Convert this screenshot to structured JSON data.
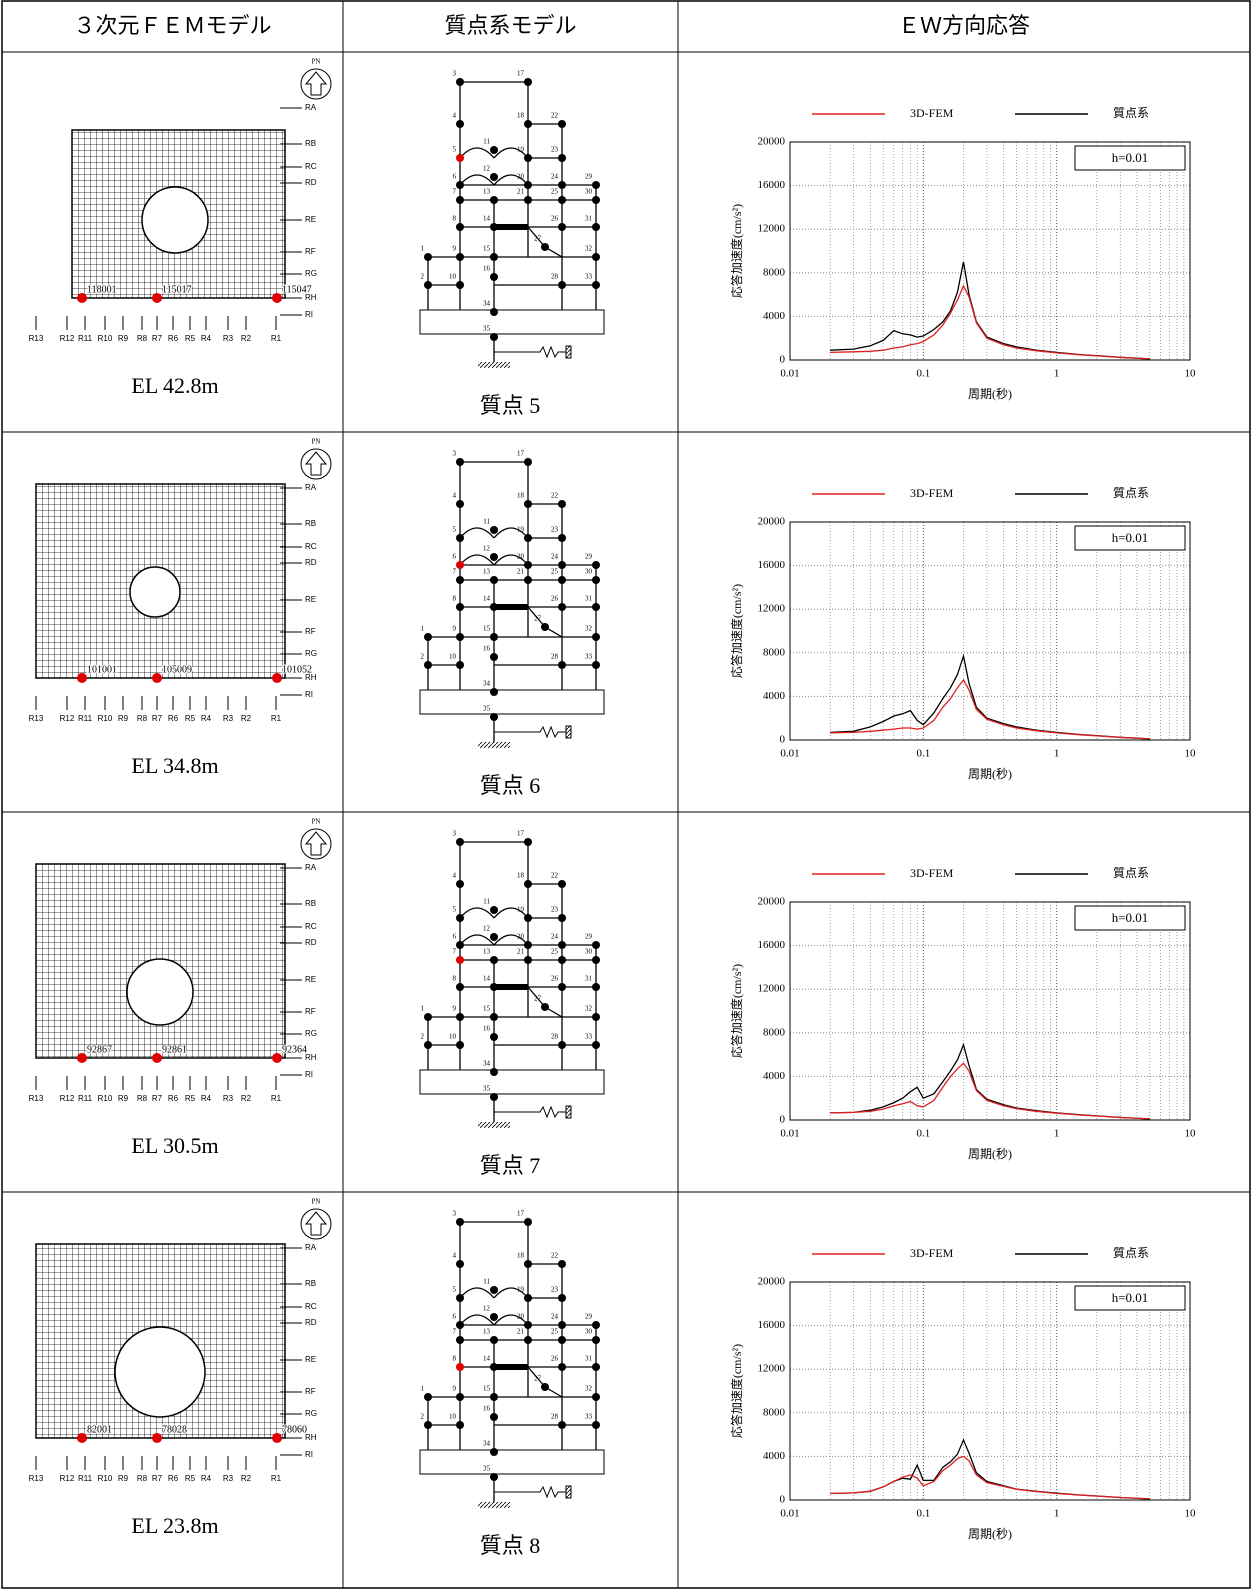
{
  "header": [
    "３次元ＦＥＭモデル",
    "質点系モデル",
    "ＥＷ方向応答"
  ],
  "fem_grid": {
    "north": "PN",
    "rows": [
      "RA",
      "RB",
      "RC",
      "RD",
      "RE",
      "RF",
      "RG",
      "RH",
      "RI"
    ],
    "cols": [
      "R13",
      "R12",
      "R11",
      "R10",
      "R9",
      "R8",
      "R7",
      "R6",
      "R5",
      "R4",
      "R3",
      "R2",
      "R1"
    ]
  },
  "mass_model": {
    "nodes": [
      "1",
      "2",
      "3",
      "4",
      "5",
      "6",
      "7",
      "8",
      "9",
      "10",
      "11",
      "12",
      "13",
      "14",
      "15",
      "16",
      "17",
      "18",
      "19",
      "20",
      "21",
      "22",
      "23",
      "24",
      "25",
      "26",
      "27",
      "28",
      "29",
      "30",
      "31",
      "32",
      "33",
      "34",
      "35"
    ]
  },
  "rows": [
    {
      "fem": {
        "points": [
          "118001",
          "115017",
          "115047"
        ],
        "elevation": "EL 42.8m"
      },
      "mass": {
        "label": "質点 5",
        "highlight_node": 5
      }
    },
    {
      "fem": {
        "points": [
          "101001",
          "105009",
          "101052"
        ],
        "elevation": "EL 34.8m"
      },
      "mass": {
        "label": "質点 6",
        "highlight_node": 6
      }
    },
    {
      "fem": {
        "points": [
          "92867",
          "92861",
          "92364"
        ],
        "elevation": "EL 30.5m"
      },
      "mass": {
        "label": "質点 7",
        "highlight_node": 7
      }
    },
    {
      "fem": {
        "points": [
          "82001",
          "78028",
          "78060"
        ],
        "elevation": "EL 23.8m"
      },
      "mass": {
        "label": "質点 8",
        "highlight_node": 8
      }
    }
  ],
  "chart_data": [
    {
      "type": "line",
      "x_label": "周期(秒)",
      "y_label": "応答加速度(cm/s²)",
      "annotation": "h=0.01",
      "xscale": "log",
      "grid": true,
      "xlim": [
        0.01,
        10
      ],
      "ylim": [
        0,
        20000
      ],
      "xticks": [
        0.01,
        0.1,
        1,
        10
      ],
      "yticks": [
        0,
        4000,
        8000,
        12000,
        16000,
        20000
      ],
      "x": [
        0.02,
        0.03,
        0.04,
        0.05,
        0.06,
        0.07,
        0.08,
        0.09,
        0.1,
        0.12,
        0.14,
        0.16,
        0.18,
        0.2,
        0.22,
        0.25,
        0.3,
        0.4,
        0.5,
        0.7,
        1,
        1.5,
        2,
        3,
        5
      ],
      "series": [
        {
          "name": "3D-FEM",
          "color": "#e02020",
          "values": [
            700,
            750,
            800,
            900,
            1100,
            1200,
            1400,
            1500,
            1700,
            2300,
            3200,
            4300,
            5500,
            6800,
            5800,
            3400,
            2000,
            1400,
            1100,
            850,
            650,
            480,
            380,
            240,
            100
          ]
        },
        {
          "name": "質点系",
          "color": "#000000",
          "values": [
            900,
            1000,
            1300,
            1800,
            2700,
            2400,
            2300,
            2100,
            2200,
            2800,
            3500,
            4500,
            6200,
            9000,
            6000,
            3500,
            2100,
            1500,
            1200,
            900,
            700,
            500,
            400,
            250,
            100
          ]
        }
      ]
    },
    {
      "type": "line",
      "x_label": "周期(秒)",
      "y_label": "応答加速度(cm/s²)",
      "annotation": "h=0.01",
      "xscale": "log",
      "grid": true,
      "xlim": [
        0.01,
        10
      ],
      "ylim": [
        0,
        20000
      ],
      "xticks": [
        0.01,
        0.1,
        1,
        10
      ],
      "yticks": [
        0,
        4000,
        8000,
        12000,
        16000,
        20000
      ],
      "x": [
        0.02,
        0.03,
        0.04,
        0.05,
        0.06,
        0.07,
        0.08,
        0.09,
        0.1,
        0.12,
        0.14,
        0.16,
        0.18,
        0.2,
        0.22,
        0.25,
        0.3,
        0.4,
        0.5,
        0.7,
        1,
        1.5,
        2,
        3,
        5
      ],
      "series": [
        {
          "name": "3D-FEM",
          "color": "#e02020",
          "values": [
            650,
            700,
            800,
            900,
            1000,
            1100,
            1100,
            1000,
            1100,
            1800,
            3000,
            3800,
            4800,
            5500,
            4600,
            2800,
            1900,
            1400,
            1100,
            850,
            650,
            480,
            380,
            240,
            100
          ]
        },
        {
          "name": "質点系",
          "color": "#000000",
          "values": [
            700,
            800,
            1200,
            1700,
            2200,
            2400,
            2700,
            1800,
            1400,
            2500,
            3800,
            4800,
            6000,
            7700,
            5200,
            3000,
            2000,
            1500,
            1200,
            900,
            700,
            500,
            400,
            250,
            100
          ]
        }
      ]
    },
    {
      "type": "line",
      "x_label": "周期(秒)",
      "y_label": "応答加速度(cm/s²)",
      "annotation": "h=0.01",
      "xscale": "log",
      "grid": true,
      "xlim": [
        0.01,
        10
      ],
      "ylim": [
        0,
        20000
      ],
      "xticks": [
        0.01,
        0.1,
        1,
        10
      ],
      "yticks": [
        0,
        4000,
        8000,
        12000,
        16000,
        20000
      ],
      "x": [
        0.02,
        0.03,
        0.04,
        0.05,
        0.06,
        0.07,
        0.08,
        0.09,
        0.1,
        0.12,
        0.14,
        0.16,
        0.18,
        0.2,
        0.22,
        0.25,
        0.3,
        0.4,
        0.5,
        0.7,
        1,
        1.5,
        2,
        3,
        5
      ],
      "series": [
        {
          "name": "3D-FEM",
          "color": "#e02020",
          "values": [
            650,
            700,
            800,
            1000,
            1300,
            1500,
            1700,
            1300,
            1200,
            1800,
            3000,
            4000,
            4700,
            5200,
            4500,
            2700,
            1800,
            1300,
            1050,
            800,
            620,
            460,
            370,
            230,
            100
          ]
        },
        {
          "name": "質点系",
          "color": "#000000",
          "values": [
            650,
            700,
            900,
            1200,
            1600,
            2000,
            2600,
            3000,
            2000,
            2400,
            3500,
            4500,
            5500,
            6900,
            5000,
            2800,
            1900,
            1400,
            1100,
            850,
            650,
            480,
            380,
            240,
            100
          ]
        }
      ]
    },
    {
      "type": "line",
      "x_label": "周期(秒)",
      "y_label": "応答加速度(cm/s²)",
      "annotation": "h=0.01",
      "xscale": "log",
      "grid": true,
      "xlim": [
        0.01,
        10
      ],
      "ylim": [
        0,
        20000
      ],
      "xticks": [
        0.01,
        0.1,
        1,
        10
      ],
      "yticks": [
        0,
        4000,
        8000,
        12000,
        16000,
        20000
      ],
      "x": [
        0.02,
        0.03,
        0.04,
        0.05,
        0.06,
        0.07,
        0.08,
        0.09,
        0.1,
        0.12,
        0.14,
        0.16,
        0.18,
        0.2,
        0.22,
        0.25,
        0.3,
        0.4,
        0.5,
        0.7,
        1,
        1.5,
        2,
        3,
        5
      ],
      "series": [
        {
          "name": "3D-FEM",
          "color": "#e02020",
          "values": [
            600,
            650,
            800,
            1200,
            1700,
            2100,
            2300,
            2000,
            1300,
            1700,
            2700,
            3200,
            3800,
            4000,
            3600,
            2300,
            1600,
            1250,
            980,
            780,
            600,
            450,
            360,
            230,
            100
          ]
        },
        {
          "name": "質点系",
          "color": "#000000",
          "values": [
            600,
            650,
            800,
            1200,
            1700,
            2000,
            1900,
            3200,
            1800,
            1800,
            3000,
            3500,
            4200,
            5500,
            4300,
            2500,
            1700,
            1300,
            1000,
            800,
            620,
            460,
            370,
            230,
            100
          ]
        }
      ]
    }
  ]
}
